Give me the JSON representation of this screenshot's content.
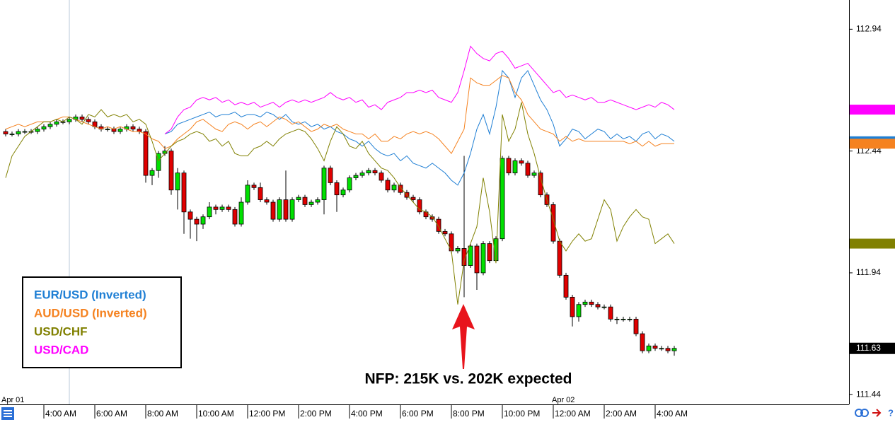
{
  "chart_data": {
    "type": "candlestick",
    "up_color": "#00e000",
    "down_color": "#e00000",
    "ylim": [
      111.4,
      113.06
    ],
    "yticks": [
      112.94,
      112.44,
      111.94,
      111.44
    ],
    "last_price": 111.63,
    "date_labels": [
      "Apr 01",
      "Apr 02"
    ],
    "annotation": "NFP: 215K vs. 202K expected",
    "categories": [
      null,
      null,
      null,
      null,
      null,
      null,
      "4:00 AM",
      null,
      null,
      null,
      null,
      null,
      null,
      null,
      "6:00 AM",
      null,
      null,
      null,
      null,
      null,
      null,
      null,
      "8:00 AM",
      null,
      null,
      null,
      null,
      null,
      null,
      null,
      "10:00 AM",
      null,
      null,
      null,
      null,
      null,
      null,
      null,
      "12:00 PM",
      null,
      null,
      null,
      null,
      null,
      null,
      null,
      "2:00 PM",
      null,
      null,
      null,
      null,
      null,
      null,
      null,
      "4:00 PM",
      null,
      null,
      null,
      null,
      null,
      null,
      null,
      "6:00 PM",
      null,
      null,
      null,
      null,
      null,
      null,
      null,
      "8:00 PM",
      null,
      null,
      null,
      null,
      null,
      null,
      null,
      "10:00 PM",
      null,
      null,
      null,
      null,
      null,
      null,
      null,
      "12:00 AM",
      null,
      null,
      null,
      null,
      null,
      null,
      null,
      "2:00 AM",
      null,
      null,
      null,
      null,
      null,
      null,
      null,
      "4:00 AM",
      null,
      null,
      null
    ],
    "open": [
      112.52,
      112.51,
      112.51,
      112.52,
      112.52,
      112.52,
      112.53,
      112.54,
      112.55,
      112.56,
      112.56,
      112.57,
      112.58,
      112.57,
      112.56,
      112.54,
      112.53,
      112.53,
      112.52,
      112.53,
      112.54,
      112.53,
      112.52,
      112.34,
      112.36,
      112.43,
      112.44,
      112.28,
      112.35,
      112.19,
      112.16,
      112.14,
      112.17,
      112.21,
      112.2,
      112.21,
      112.2,
      112.14,
      112.23,
      112.3,
      112.29,
      112.24,
      112.23,
      112.16,
      112.24,
      112.16,
      112.24,
      112.25,
      112.22,
      112.23,
      112.24,
      112.37,
      112.31,
      112.26,
      112.28,
      112.33,
      112.34,
      112.35,
      112.36,
      112.35,
      112.32,
      112.28,
      112.3,
      112.27,
      112.25,
      112.24,
      112.19,
      112.17,
      112.16,
      112.11,
      112.1,
      112.03,
      112.04,
      111.97,
      112.05,
      111.94,
      112.06,
      111.99,
      112.08,
      112.41,
      112.35,
      112.4,
      112.39,
      112.34,
      112.35,
      112.26,
      112.22,
      112.07,
      111.93,
      111.84,
      111.76,
      111.81,
      111.82,
      111.81,
      111.8,
      111.8,
      111.75,
      111.75,
      111.75,
      111.75,
      111.69,
      111.62,
      111.64,
      111.63,
      111.63,
      111.62
    ],
    "high": [
      112.53,
      112.52,
      112.53,
      112.53,
      112.53,
      112.54,
      112.55,
      112.56,
      112.57,
      112.57,
      112.58,
      112.59,
      112.59,
      112.58,
      112.57,
      112.55,
      112.54,
      112.54,
      112.54,
      112.55,
      112.55,
      112.54,
      112.53,
      112.37,
      112.44,
      112.46,
      112.45,
      112.37,
      112.36,
      112.2,
      112.17,
      112.18,
      112.23,
      112.22,
      112.22,
      112.22,
      112.21,
      112.25,
      112.32,
      112.31,
      112.31,
      112.25,
      112.24,
      112.25,
      112.36,
      112.25,
      112.26,
      112.26,
      112.24,
      112.25,
      112.38,
      112.38,
      112.32,
      112.29,
      112.34,
      112.35,
      112.36,
      112.37,
      112.37,
      112.36,
      112.33,
      112.31,
      112.31,
      112.28,
      112.26,
      112.25,
      112.2,
      112.18,
      112.17,
      112.12,
      112.11,
      112.05,
      112.42,
      112.06,
      112.06,
      112.07,
      112.07,
      112.09,
      112.42,
      112.42,
      112.41,
      112.41,
      112.4,
      112.36,
      112.36,
      112.27,
      112.23,
      112.08,
      111.94,
      111.85,
      111.82,
      111.83,
      111.83,
      111.82,
      111.81,
      111.81,
      111.76,
      111.76,
      111.76,
      111.76,
      111.7,
      111.65,
      111.65,
      111.64,
      111.64,
      111.64
    ],
    "low": [
      112.5,
      112.5,
      112.5,
      112.51,
      112.51,
      112.51,
      112.52,
      112.53,
      112.54,
      112.55,
      112.55,
      112.56,
      112.56,
      112.55,
      112.53,
      112.52,
      112.52,
      112.51,
      112.51,
      112.52,
      112.52,
      112.51,
      112.31,
      112.3,
      112.33,
      112.42,
      112.26,
      112.2,
      112.1,
      112.08,
      112.07,
      112.12,
      112.16,
      112.18,
      112.19,
      112.19,
      112.13,
      112.13,
      112.22,
      112.28,
      112.23,
      112.22,
      112.15,
      112.15,
      112.15,
      112.15,
      112.23,
      112.21,
      112.21,
      112.22,
      112.18,
      112.3,
      112.19,
      112.25,
      112.27,
      112.32,
      112.33,
      112.34,
      112.34,
      112.31,
      112.27,
      112.27,
      112.26,
      112.24,
      112.23,
      112.18,
      112.16,
      112.15,
      112.1,
      112.09,
      112.02,
      112.02,
      111.84,
      111.96,
      111.87,
      111.93,
      111.98,
      111.98,
      112.07,
      112.34,
      112.34,
      112.38,
      112.33,
      112.33,
      112.25,
      112.21,
      112.06,
      111.92,
      111.83,
      111.72,
      111.74,
      111.8,
      111.8,
      111.79,
      111.79,
      111.74,
      111.73,
      111.74,
      111.74,
      111.68,
      111.61,
      111.61,
      111.62,
      111.62,
      111.61,
      111.6
    ],
    "close": [
      112.51,
      112.51,
      112.52,
      112.52,
      112.52,
      112.53,
      112.54,
      112.55,
      112.56,
      112.56,
      112.57,
      112.58,
      112.57,
      112.56,
      112.54,
      112.53,
      112.53,
      112.52,
      112.53,
      112.54,
      112.53,
      112.52,
      112.34,
      112.36,
      112.43,
      112.44,
      112.28,
      112.35,
      112.19,
      112.16,
      112.14,
      112.17,
      112.21,
      112.2,
      112.21,
      112.2,
      112.14,
      112.23,
      112.3,
      112.29,
      112.24,
      112.23,
      112.16,
      112.24,
      112.16,
      112.24,
      112.25,
      112.22,
      112.23,
      112.24,
      112.37,
      112.31,
      112.26,
      112.28,
      112.33,
      112.34,
      112.35,
      112.36,
      112.35,
      112.32,
      112.28,
      112.3,
      112.27,
      112.25,
      112.24,
      112.19,
      112.17,
      112.16,
      112.11,
      112.1,
      112.03,
      112.04,
      111.97,
      112.05,
      111.94,
      112.06,
      111.99,
      112.08,
      112.41,
      112.35,
      112.4,
      112.39,
      112.34,
      112.35,
      112.26,
      112.22,
      112.07,
      111.93,
      111.84,
      111.76,
      111.81,
      111.82,
      111.81,
      111.8,
      111.8,
      111.75,
      111.75,
      111.75,
      111.75,
      111.69,
      111.62,
      111.64,
      111.63,
      111.63,
      111.62,
      111.63
    ],
    "series": [
      {
        "name": "EUR/USD (Inverted)",
        "color": "#1f7fd4",
        "values": [
          null,
          null,
          null,
          null,
          null,
          null,
          null,
          null,
          null,
          null,
          null,
          null,
          null,
          null,
          null,
          null,
          null,
          null,
          null,
          null,
          null,
          null,
          null,
          null,
          null,
          112.51,
          112.52,
          112.55,
          112.56,
          112.57,
          112.58,
          112.59,
          112.6,
          112.58,
          112.59,
          112.59,
          112.6,
          112.58,
          112.59,
          112.59,
          112.58,
          112.6,
          112.59,
          112.57,
          112.59,
          112.56,
          112.55,
          112.56,
          112.54,
          112.55,
          112.53,
          112.54,
          112.52,
          112.51,
          112.49,
          112.48,
          112.46,
          112.48,
          112.45,
          112.43,
          112.42,
          112.43,
          112.4,
          112.42,
          112.39,
          112.38,
          112.37,
          112.39,
          112.37,
          112.35,
          112.32,
          112.3,
          112.35,
          112.43,
          112.53,
          112.59,
          112.51,
          112.62,
          112.77,
          112.74,
          112.66,
          112.74,
          112.77,
          112.71,
          112.65,
          112.61,
          112.55,
          112.46,
          112.49,
          112.53,
          112.52,
          112.49,
          112.51,
          112.53,
          112.52,
          112.49,
          112.51,
          112.49,
          112.5,
          112.48,
          112.51,
          112.52,
          112.49,
          112.51,
          112.5,
          112.48
        ]
      },
      {
        "name": "AUD/USD (Inverted)",
        "color": "#f58220",
        "values": [
          112.53,
          112.54,
          112.55,
          112.54,
          112.55,
          112.56,
          112.56,
          112.56,
          112.57,
          112.58,
          112.58,
          112.57,
          112.56,
          112.55,
          112.54,
          112.53,
          112.54,
          112.53,
          112.54,
          112.53,
          112.52,
          112.52,
          112.51,
          112.49,
          112.48,
          112.45,
          112.46,
          112.49,
          112.51,
          112.53,
          112.56,
          112.57,
          112.55,
          112.53,
          112.52,
          112.55,
          112.56,
          112.55,
          112.53,
          112.55,
          112.56,
          112.54,
          112.56,
          112.58,
          112.57,
          112.55,
          112.56,
          112.54,
          112.52,
          112.53,
          112.55,
          112.54,
          112.55,
          112.53,
          112.52,
          112.51,
          112.51,
          112.49,
          112.51,
          112.48,
          112.48,
          112.5,
          112.49,
          112.51,
          112.52,
          112.51,
          112.52,
          112.51,
          112.49,
          112.46,
          112.43,
          112.48,
          112.53,
          112.74,
          112.72,
          112.71,
          112.71,
          112.73,
          112.75,
          112.74,
          112.68,
          112.65,
          112.59,
          112.56,
          112.53,
          112.52,
          112.51,
          112.48,
          112.5,
          112.48,
          112.49,
          112.48,
          112.48,
          112.48,
          112.48,
          112.48,
          112.48,
          112.48,
          112.47,
          112.48,
          112.46,
          112.48,
          112.46,
          112.47,
          112.47,
          112.47
        ]
      },
      {
        "name": "USD/CHF",
        "color": "#808000",
        "values": [
          112.33,
          112.42,
          112.46,
          112.5,
          112.52,
          112.54,
          112.56,
          112.56,
          112.57,
          112.56,
          112.58,
          112.57,
          112.55,
          112.59,
          112.58,
          112.61,
          112.58,
          112.59,
          112.58,
          112.59,
          112.56,
          112.57,
          112.55,
          112.48,
          112.4,
          112.43,
          112.46,
          112.48,
          112.49,
          112.51,
          112.52,
          112.51,
          112.48,
          112.49,
          112.46,
          112.48,
          112.43,
          112.42,
          112.42,
          112.45,
          112.46,
          112.48,
          112.46,
          112.49,
          112.51,
          112.52,
          112.53,
          112.52,
          112.49,
          112.45,
          112.4,
          112.48,
          112.54,
          112.51,
          112.46,
          112.45,
          112.48,
          112.43,
          112.4,
          112.37,
          112.36,
          112.33,
          112.29,
          112.26,
          112.23,
          112.2,
          112.19,
          112.17,
          112.13,
          112.08,
          112.03,
          111.81,
          111.99,
          112.06,
          112.13,
          112.33,
          112.19,
          111.98,
          112.59,
          112.48,
          112.53,
          112.64,
          112.51,
          112.43,
          112.33,
          112.24,
          112.16,
          112.07,
          112.03,
          112.07,
          112.1,
          112.07,
          112.08,
          112.16,
          112.24,
          112.2,
          112.07,
          112.13,
          112.17,
          112.2,
          112.17,
          112.16,
          112.06,
          112.08,
          112.1,
          112.06
        ]
      },
      {
        "name": "USD/CAD",
        "color": "#ff00ff",
        "values": [
          null,
          null,
          null,
          null,
          null,
          null,
          null,
          null,
          null,
          null,
          null,
          null,
          null,
          null,
          null,
          null,
          null,
          null,
          null,
          null,
          null,
          null,
          null,
          null,
          null,
          112.51,
          112.53,
          112.58,
          112.61,
          112.62,
          112.65,
          112.66,
          112.65,
          112.66,
          112.64,
          112.65,
          112.63,
          112.64,
          112.63,
          112.64,
          112.62,
          112.63,
          112.64,
          112.62,
          112.64,
          112.65,
          112.64,
          112.65,
          112.64,
          112.65,
          112.66,
          112.68,
          112.66,
          112.65,
          112.66,
          112.64,
          112.65,
          112.62,
          112.63,
          112.61,
          112.64,
          112.65,
          112.66,
          112.68,
          112.68,
          112.69,
          112.68,
          112.69,
          112.66,
          112.65,
          112.64,
          112.68,
          112.77,
          112.87,
          112.84,
          112.82,
          112.81,
          112.84,
          112.85,
          112.82,
          112.78,
          112.79,
          112.8,
          112.77,
          112.74,
          112.71,
          112.68,
          112.69,
          112.66,
          112.67,
          112.66,
          112.65,
          112.66,
          112.64,
          112.64,
          112.65,
          112.64,
          112.63,
          112.62,
          112.61,
          112.62,
          112.63,
          112.62,
          112.64,
          112.63,
          112.61
        ]
      }
    ]
  }
}
